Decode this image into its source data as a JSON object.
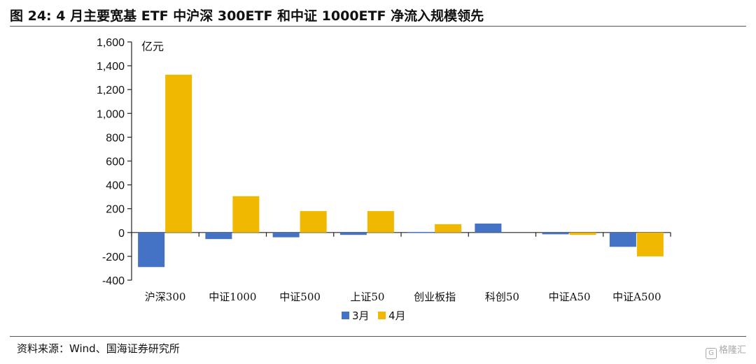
{
  "title": "图 24:  4 月主要宽基 ETF 中沪深 300ETF 和中证 1000ETF 净流入规模领先",
  "source": "资料来源：Wind、国海证券研究所",
  "watermark": "格隆汇",
  "chart_data": {
    "type": "bar",
    "title": "4 月主要宽基 ETF 中沪深 300ETF 和中证 1000ETF 净流入规模领先",
    "ylabel": "亿元",
    "xlabel": "",
    "ylim": [
      -400,
      1600
    ],
    "yticks": [
      -400,
      -200,
      0,
      200,
      400,
      600,
      800,
      1000,
      1200,
      1400,
      1600
    ],
    "ytick_labels": [
      "-400",
      "-200",
      "0",
      "200",
      "400",
      "600",
      "800",
      "1,000",
      "1,200",
      "1,400",
      "1,600"
    ],
    "categories": [
      "沪深300",
      "中证1000",
      "中证500",
      "上证50",
      "创业板指",
      "科创50",
      "中证A50",
      "中证A500"
    ],
    "series": [
      {
        "name": "3月",
        "color": "#4472C4",
        "values": [
          -290,
          -55,
          -40,
          -20,
          5,
          75,
          -15,
          -120
        ]
      },
      {
        "name": "4月",
        "color": "#F0B800",
        "values": [
          1325,
          305,
          180,
          180,
          70,
          0,
          -20,
          -200
        ]
      }
    ],
    "legend": "bottom",
    "grid": false
  }
}
